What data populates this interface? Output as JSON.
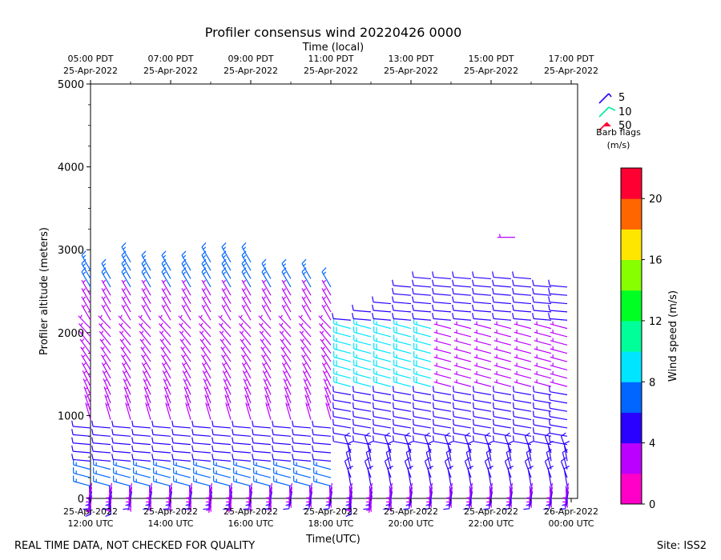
{
  "chart_data": {
    "type": "barbs",
    "title": "Profiler consensus wind 20220426 0000",
    "top_axis_label": "Time (local)",
    "xlabel": "Time(UTC)",
    "ylabel": "Profiler altitude (meters)",
    "ylim": [
      0,
      5000
    ],
    "y_ticks": [
      0,
      1000,
      2000,
      3000,
      4000,
      5000
    ],
    "x_range_hours_utc": [
      12.0,
      24.16
    ],
    "bottom_ticks": [
      {
        "hour": 12,
        "line1": "25-Apr-2022",
        "line2": "12:00 UTC"
      },
      {
        "hour": 14,
        "line1": "25-Apr-2022",
        "line2": "14:00 UTC"
      },
      {
        "hour": 16,
        "line1": "25-Apr-2022",
        "line2": "16:00 UTC"
      },
      {
        "hour": 18,
        "line1": "25-Apr-2022",
        "line2": "18:00 UTC"
      },
      {
        "hour": 20,
        "line1": "25-Apr-2022",
        "line2": "20:00 UTC"
      },
      {
        "hour": 22,
        "line1": "25-Apr-2022",
        "line2": "22:00 UTC"
      },
      {
        "hour": 24,
        "line1": "26-Apr-2022",
        "line2": "00:00 UTC"
      }
    ],
    "top_ticks": [
      {
        "hour": 12,
        "line1": "05:00 PDT",
        "line2": "25-Apr-2022"
      },
      {
        "hour": 14,
        "line1": "07:00 PDT",
        "line2": "25-Apr-2022"
      },
      {
        "hour": 16,
        "line1": "09:00 PDT",
        "line2": "25-Apr-2022"
      },
      {
        "hour": 18,
        "line1": "11:00 PDT",
        "line2": "25-Apr-2022"
      },
      {
        "hour": 20,
        "line1": "13:00 PDT",
        "line2": "25-Apr-2022"
      },
      {
        "hour": 22,
        "line1": "15:00 PDT",
        "line2": "25-Apr-2022"
      },
      {
        "hour": 24,
        "line1": "17:00 PDT",
        "line2": "25-Apr-2022"
      }
    ],
    "barb_legend": {
      "items": [
        {
          "label": "5",
          "color": "#2a00ff"
        },
        {
          "label": "10",
          "color": "#00ee99"
        },
        {
          "label": "50",
          "color": "#ff0033"
        }
      ],
      "title_line1": "Barb flags",
      "title_line2": "(m/s)"
    },
    "colorbar": {
      "label": "Wind speed (m/s)",
      "vmin": 0,
      "vmax": 22,
      "ticks": [
        0,
        4,
        8,
        12,
        16,
        20
      ],
      "colors": [
        "#ff00c8",
        "#bb00ff",
        "#2a00ff",
        "#0066ff",
        "#00e5ff",
        "#00ff99",
        "#00ff22",
        "#88ff00",
        "#ffe600",
        "#ff6600",
        "#ff0033"
      ]
    },
    "columns": [
      {
        "hour": 12.0,
        "top": 2800,
        "regime": "A",
        "up": 9
      },
      {
        "hour": 12.5,
        "top": 2700,
        "regime": "A",
        "up": 8
      },
      {
        "hour": 13.0,
        "top": 2850,
        "regime": "A",
        "up": 6
      },
      {
        "hour": 13.5,
        "top": 2800,
        "regime": "A",
        "up": 6
      },
      {
        "hour": 14.0,
        "top": 2750,
        "regime": "A",
        "up": 6
      },
      {
        "hour": 14.5,
        "top": 2750,
        "regime": "A",
        "up": 6
      },
      {
        "hour": 15.0,
        "top": 2900,
        "regime": "A",
        "up": 7
      },
      {
        "hour": 15.5,
        "top": 2900,
        "regime": "A",
        "up": 7
      },
      {
        "hour": 16.0,
        "top": 2900,
        "regime": "A",
        "up": 6
      },
      {
        "hour": 16.5,
        "top": 2650,
        "regime": "A",
        "up": 6
      },
      {
        "hour": 17.0,
        "top": 2650,
        "regime": "A",
        "up": 5
      },
      {
        "hour": 17.5,
        "top": 2650,
        "regime": "A",
        "up": 5
      },
      {
        "hour": 18.0,
        "top": 2600,
        "regime": "A",
        "up": 5
      },
      {
        "hour": 18.5,
        "top": 2200,
        "regime": "B",
        "up": 8
      },
      {
        "hour": 19.0,
        "top": 2300,
        "regime": "B",
        "up": 7
      },
      {
        "hour": 19.5,
        "top": 2400,
        "regime": "B",
        "up": 6
      },
      {
        "hour": 20.0,
        "top": 2600,
        "regime": "B",
        "up": 5
      },
      {
        "hour": 20.5,
        "top": 2650,
        "regime": "B",
        "up": 5
      },
      {
        "hour": 21.0,
        "top": 2650,
        "regime": "B",
        "up": 5
      },
      {
        "hour": 21.5,
        "top": 2650,
        "regime": "B",
        "up": 5
      },
      {
        "hour": 22.0,
        "top": 2650,
        "regime": "B",
        "up": 5
      },
      {
        "hour": 22.5,
        "top": 2700,
        "regime": "B",
        "up": 5
      },
      {
        "hour": 23.0,
        "top": 2650,
        "regime": "B",
        "up": 5
      },
      {
        "hour": 23.5,
        "top": 2600,
        "regime": "B",
        "up": 5
      },
      {
        "hour": 23.9,
        "top": 2550,
        "regime": "B",
        "up": 5
      }
    ],
    "isolated_barbs": [
      {
        "hour": 22.6,
        "alt": 3150,
        "speed": 2.5,
        "dir": 270
      }
    ],
    "footer_left": "REAL TIME DATA, NOT CHECKED FOR QUALITY",
    "footer_right": "Site: ISS2"
  }
}
